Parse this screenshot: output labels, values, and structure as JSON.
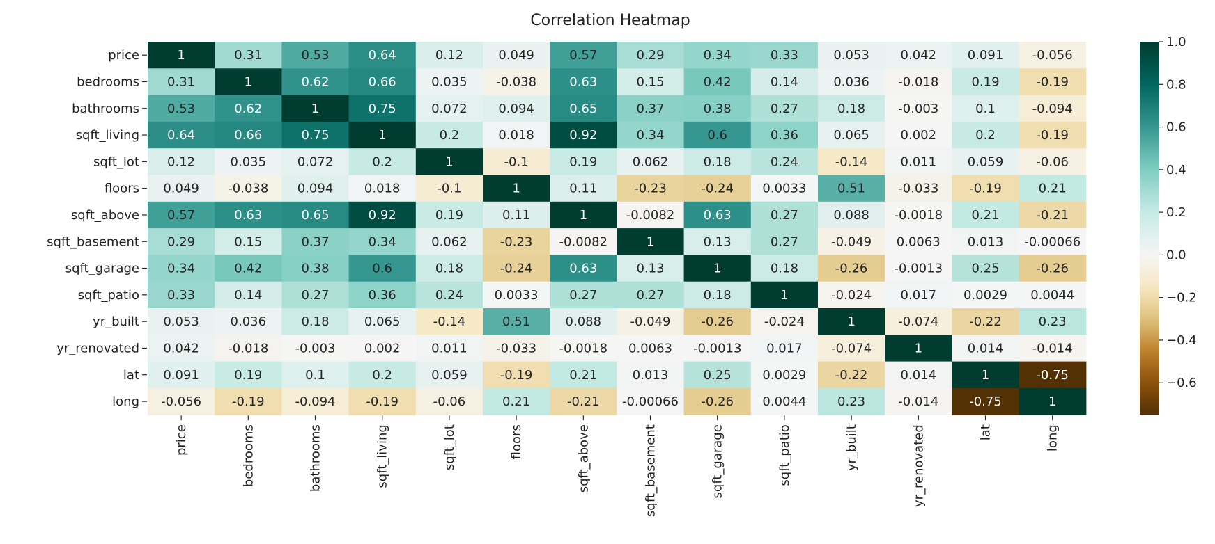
{
  "chart_data": {
    "type": "heatmap",
    "title": "Correlation Heatmap",
    "variables": [
      "price",
      "bedrooms",
      "bathrooms",
      "sqft_living",
      "sqft_lot",
      "floors",
      "sqft_above",
      "sqft_basement",
      "sqft_garage",
      "sqft_patio",
      "yr_built",
      "yr_renovated",
      "lat",
      "long"
    ],
    "matrix": [
      [
        "1",
        "0.31",
        "0.53",
        "0.64",
        "0.12",
        "0.049",
        "0.57",
        "0.29",
        "0.34",
        "0.33",
        "0.053",
        "0.042",
        "0.091",
        "-0.056"
      ],
      [
        "0.31",
        "1",
        "0.62",
        "0.66",
        "0.035",
        "-0.038",
        "0.63",
        "0.15",
        "0.42",
        "0.14",
        "0.036",
        "-0.018",
        "0.19",
        "-0.19"
      ],
      [
        "0.53",
        "0.62",
        "1",
        "0.75",
        "0.072",
        "0.094",
        "0.65",
        "0.37",
        "0.38",
        "0.27",
        "0.18",
        "-0.003",
        "0.1",
        "-0.094"
      ],
      [
        "0.64",
        "0.66",
        "0.75",
        "1",
        "0.2",
        "0.018",
        "0.92",
        "0.34",
        "0.6",
        "0.36",
        "0.065",
        "0.002",
        "0.2",
        "-0.19"
      ],
      [
        "0.12",
        "0.035",
        "0.072",
        "0.2",
        "1",
        "-0.1",
        "0.19",
        "0.062",
        "0.18",
        "0.24",
        "-0.14",
        "0.011",
        "0.059",
        "-0.06"
      ],
      [
        "0.049",
        "-0.038",
        "0.094",
        "0.018",
        "-0.1",
        "1",
        "0.11",
        "-0.23",
        "-0.24",
        "0.0033",
        "0.51",
        "-0.033",
        "-0.19",
        "0.21"
      ],
      [
        "0.57",
        "0.63",
        "0.65",
        "0.92",
        "0.19",
        "0.11",
        "1",
        "-0.0082",
        "0.63",
        "0.27",
        "0.088",
        "-0.0018",
        "0.21",
        "-0.21"
      ],
      [
        "0.29",
        "0.15",
        "0.37",
        "0.34",
        "0.062",
        "-0.23",
        "-0.0082",
        "1",
        "0.13",
        "0.27",
        "-0.049",
        "0.0063",
        "0.013",
        "-0.00066"
      ],
      [
        "0.34",
        "0.42",
        "0.38",
        "0.6",
        "0.18",
        "-0.24",
        "0.63",
        "0.13",
        "1",
        "0.18",
        "-0.26",
        "-0.0013",
        "0.25",
        "-0.26"
      ],
      [
        "0.33",
        "0.14",
        "0.27",
        "0.36",
        "0.24",
        "0.0033",
        "0.27",
        "0.27",
        "0.18",
        "1",
        "-0.024",
        "0.017",
        "0.0029",
        "0.0044"
      ],
      [
        "0.053",
        "0.036",
        "0.18",
        "0.065",
        "-0.14",
        "0.51",
        "0.088",
        "-0.049",
        "-0.26",
        "-0.024",
        "1",
        "-0.074",
        "-0.22",
        "0.23"
      ],
      [
        "0.042",
        "-0.018",
        "-0.003",
        "0.002",
        "0.011",
        "-0.033",
        "-0.0018",
        "0.0063",
        "-0.0013",
        "0.017",
        "-0.074",
        "1",
        "0.014",
        "-0.014"
      ],
      [
        "0.091",
        "0.19",
        "0.1",
        "0.2",
        "0.059",
        "-0.19",
        "0.21",
        "0.013",
        "0.25",
        "0.0029",
        "-0.22",
        "0.014",
        "1",
        "-0.75"
      ],
      [
        "-0.056",
        "-0.19",
        "-0.094",
        "-0.19",
        "-0.06",
        "0.21",
        "-0.21",
        "-0.00066",
        "-0.26",
        "0.0044",
        "0.23",
        "-0.014",
        "-0.75",
        "1"
      ]
    ],
    "colorbar": {
      "ticks": [
        1.0,
        0.8,
        0.6,
        0.4,
        0.2,
        0.0,
        -0.2,
        -0.4,
        -0.6
      ],
      "tick_labels": [
        "1.0",
        "0.8",
        "0.6",
        "0.4",
        "0.2",
        "0.0",
        "−0.2",
        "−0.4",
        "−0.6"
      ],
      "range": [
        -0.75,
        1.0
      ]
    },
    "colormap": {
      "name": "BrBG",
      "stops": [
        "#543005",
        "#8c510a",
        "#bf812d",
        "#dfc27d",
        "#f6e8c3",
        "#f5f5f5",
        "#c7eae5",
        "#80cdc1",
        "#35978f",
        "#01665e",
        "#003c30"
      ]
    }
  }
}
